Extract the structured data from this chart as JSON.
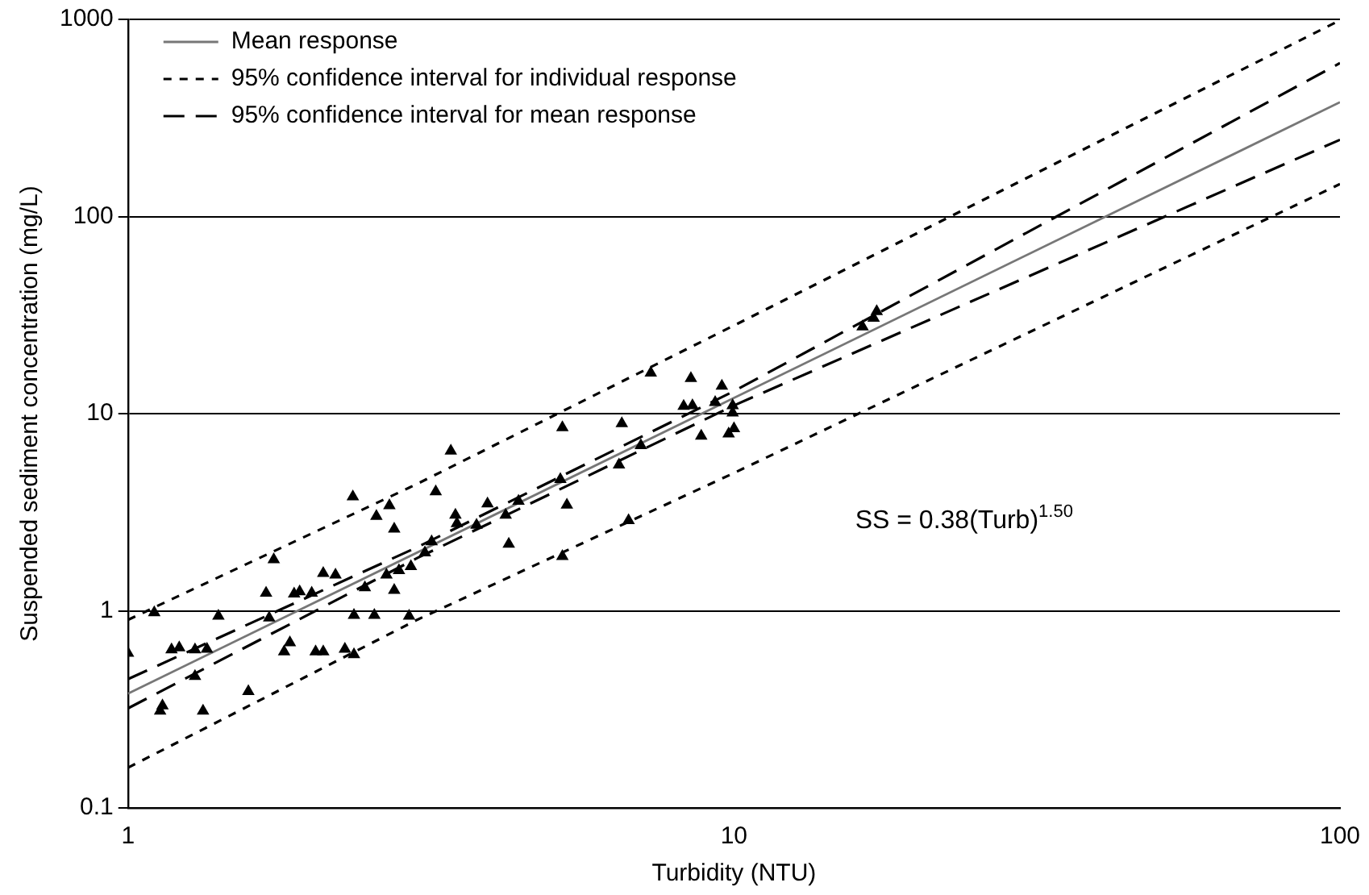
{
  "chart_data": {
    "type": "scatter",
    "xlabel": "Turbidity (NTU)",
    "ylabel": "Suspended sediment concentration (mg/L)",
    "log": "xy",
    "xlim": [
      1,
      100
    ],
    "ylim": [
      0.1,
      1000
    ],
    "xticks": [
      1,
      10,
      100
    ],
    "yticks": [
      0.1,
      1,
      10,
      100,
      1000
    ],
    "grid": "y",
    "legend": "top left",
    "annotations": [
      "SS = 0.38(Turb)$^{1.50}$"
    ],
    "series": [
      {
        "type": "line",
        "name": "Mean response",
        "color": "#777777",
        "line_style": "solid",
        "marker": "none",
        "x": [
          1,
          100
        ],
        "values": [
          0.38,
          380
        ]
      },
      {
        "type": "line",
        "name": "95% confidence interval for individual response",
        "color": "#000000",
        "line_style": "dotted",
        "marker": "none",
        "x": [
          1,
          3,
          10,
          100
        ],
        "values": [
          0.9,
          4.4,
          28,
          990
        ]
      },
      {
        "type": "line",
        "name": "95% confidence interval for mean response",
        "color": "#000000",
        "line_style": "dashed",
        "marker": "none",
        "x": [
          1,
          3,
          10,
          100
        ],
        "values": [
          0.45,
          2.1,
          13,
          600
        ]
      },
      {
        "type": "line",
        "color": "#000000",
        "line_style": "dotted",
        "marker": "none",
        "x": [
          1,
          3,
          10,
          100
        ],
        "values": [
          0.16,
          0.9,
          5,
          146
        ]
      },
      {
        "type": "line",
        "color": "#000000",
        "line_style": "dashed",
        "marker": "none",
        "x": [
          1,
          3,
          10,
          100
        ],
        "values": [
          0.32,
          1.85,
          11,
          245
        ]
      },
      {
        "color": "#000000",
        "marker": "triangle",
        "x": [
          1.0,
          1.105,
          1.18,
          1.215,
          1.29,
          1.35,
          1.29,
          1.14,
          1.13,
          1.33,
          1.41,
          1.58,
          1.69,
          1.71,
          1.74,
          1.81,
          1.85,
          1.88,
          1.92,
          2.01,
          2.04,
          2.1,
          2.1,
          2.2,
          2.28,
          2.36,
          2.36,
          2.35,
          2.46,
          2.55,
          2.57,
          2.7,
          2.75,
          2.67,
          2.75,
          2.8,
          2.91,
          2.93,
          3.09,
          3.17,
          3.22,
          3.47,
          3.49,
          3.76,
          3.92,
          3.41,
          4.2,
          4.25,
          4.41,
          5.17,
          5.3,
          5.21,
          5.21,
          6.53,
          6.46,
          7.02,
          6.7,
          7.29,
          8.26,
          8.54,
          8.49,
          8.83,
          9.31,
          9.55,
          9.95,
          9.95,
          9.8,
          10.0,
          16.3,
          17.0,
          17.2
        ],
        "values": [
          0.61,
          0.98,
          0.635,
          0.65,
          0.635,
          0.64,
          0.465,
          0.33,
          0.31,
          0.31,
          0.94,
          0.39,
          1.23,
          0.92,
          1.82,
          0.62,
          0.69,
          1.22,
          1.25,
          1.23,
          0.62,
          0.62,
          1.55,
          1.52,
          0.64,
          0.6,
          0.95,
          3.79,
          1.31,
          0.95,
          3.02,
          3.42,
          2.6,
          1.52,
          1.27,
          1.6,
          0.94,
          1.68,
          1.97,
          2.24,
          4.02,
          3.06,
          2.77,
          2.72,
          3.49,
          6.47,
          3.06,
          2.18,
          3.6,
          4.64,
          3.44,
          8.5,
          1.89,
          8.9,
          5.5,
          6.9,
          2.87,
          16.1,
          10.9,
          11.0,
          15.1,
          7.7,
          11.4,
          13.8,
          11.0,
          10.1,
          7.9,
          8.4,
          27.6,
          30.5,
          33
        ]
      }
    ]
  }
}
